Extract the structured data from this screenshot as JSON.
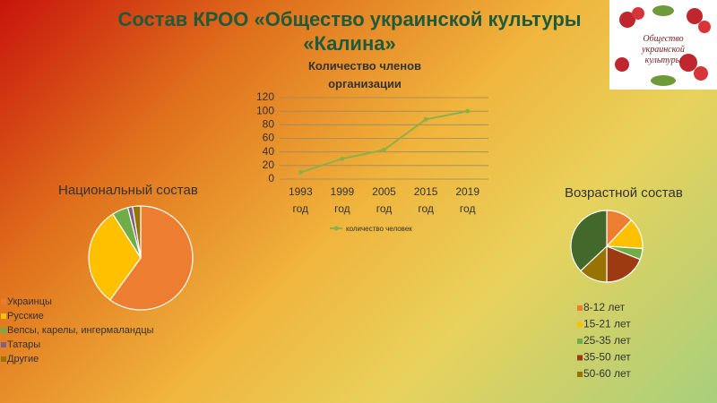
{
  "title": "Состав КРОО «Общество украинской культуры «Калина»",
  "logo_text": "Общество украинской культуры",
  "chart_data": [
    {
      "type": "line",
      "title": "Количество членов организации",
      "categories": [
        "1993 год",
        "1999 год",
        "2005 год",
        "2015 год",
        "2019 год"
      ],
      "series": [
        {
          "name": "количество человек",
          "color": "#8db04a",
          "values": [
            10,
            30,
            43,
            88,
            100
          ]
        }
      ],
      "ylim": [
        0,
        120
      ],
      "yticks": [
        0,
        20,
        40,
        60,
        80,
        100,
        120
      ],
      "grid": true,
      "legend": "bottom"
    },
    {
      "type": "pie",
      "title": "Национальный состав",
      "categories": [
        "Украинцы",
        "Русские",
        "Вепсы, карелы, ингермаландцы",
        "Татары",
        "Другие"
      ],
      "values": [
        60,
        31,
        5,
        1.5,
        2.5
      ],
      "colors": [
        "#ed7d31",
        "#ffc000",
        "#70ad47",
        "#7f6084",
        "#997300"
      ],
      "legend": "bottom-left"
    },
    {
      "type": "pie",
      "title": "Возрастной состав",
      "categories": [
        "8-12 лет",
        "15-21 лет",
        "25-35 лет",
        "35-50 лет",
        "50-60 лет",
        null
      ],
      "values": [
        12,
        14,
        5,
        19,
        13,
        37
      ],
      "colors": [
        "#ed7d31",
        "#ffc000",
        "#70ad47",
        "#9e3a12",
        "#997300",
        "#43682b"
      ],
      "legend": "bottom"
    }
  ]
}
